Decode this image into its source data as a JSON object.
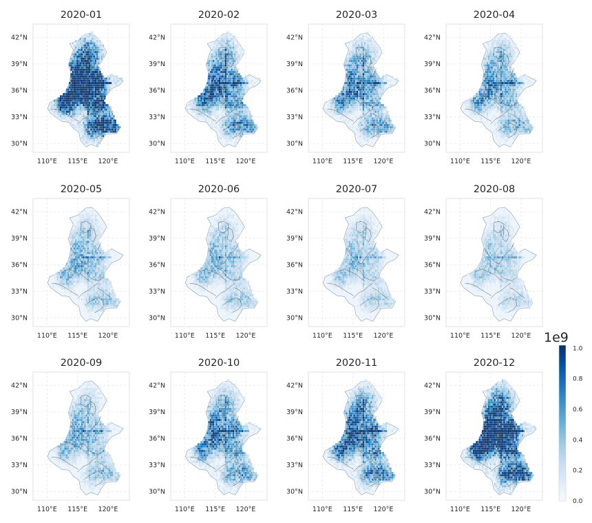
{
  "chart_data": {
    "type": "heatmap",
    "description_free": true,
    "panels": [
      {
        "title": "2020-01",
        "intensity": 0.95
      },
      {
        "title": "2020-02",
        "intensity": 0.58
      },
      {
        "title": "2020-03",
        "intensity": 0.5
      },
      {
        "title": "2020-04",
        "intensity": 0.44
      },
      {
        "title": "2020-05",
        "intensity": 0.34
      },
      {
        "title": "2020-06",
        "intensity": 0.31
      },
      {
        "title": "2020-07",
        "intensity": 0.28
      },
      {
        "title": "2020-08",
        "intensity": 0.25
      },
      {
        "title": "2020-09",
        "intensity": 0.36
      },
      {
        "title": "2020-10",
        "intensity": 0.52
      },
      {
        "title": "2020-11",
        "intensity": 0.62
      },
      {
        "title": "2020-12",
        "intensity": 0.88
      }
    ],
    "x_ticks": [
      "110°E",
      "115°E",
      "120°E"
    ],
    "x_tick_values": [
      110,
      115,
      120
    ],
    "y_ticks": [
      "42°N",
      "39°N",
      "36°N",
      "33°N",
      "30°N"
    ],
    "y_tick_values": [
      42,
      39,
      36,
      33,
      30
    ],
    "xlim": [
      107.7,
      123.5
    ],
    "ylim": [
      29.0,
      43.5
    ],
    "grid": true,
    "colormap": "Blues",
    "colorbar": {
      "ticks": [
        "0.0",
        "0.2",
        "0.4",
        "0.6",
        "0.8",
        "1.0"
      ],
      "tick_values": [
        0.0,
        0.2,
        0.4,
        0.6,
        0.8,
        1.0
      ],
      "range": [
        0,
        1.02
      ],
      "exponent_label": "1e9"
    }
  }
}
